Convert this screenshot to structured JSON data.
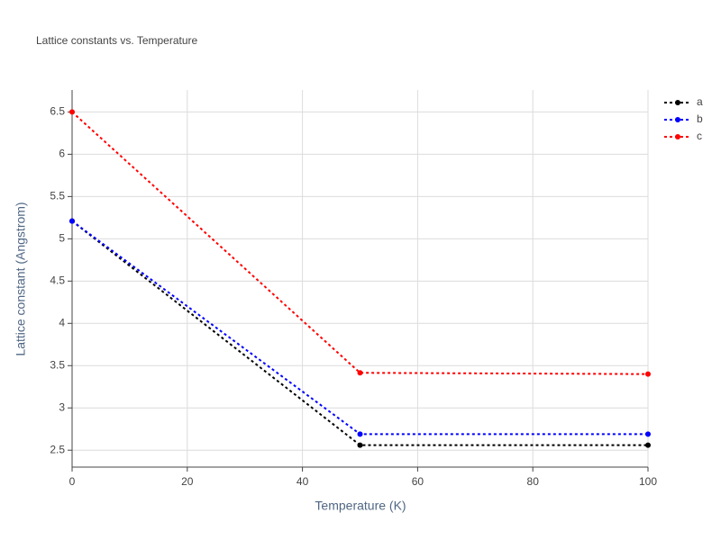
{
  "chart_data": {
    "type": "line",
    "title": "Lattice constants vs. Temperature",
    "x_label": "Temperature (K)",
    "y_label": "Lattice constant (Angstrom)",
    "x": [
      0,
      50,
      100
    ],
    "series": [
      {
        "name": "a",
        "color": "#000000",
        "values": [
          5.21,
          2.56,
          2.56
        ]
      },
      {
        "name": "b",
        "color": "#0000ff",
        "values": [
          5.21,
          2.69,
          2.69
        ]
      },
      {
        "name": "c",
        "color": "#ff0000",
        "values": [
          6.5,
          3.415,
          3.4
        ]
      }
    ],
    "xlim": [
      0,
      100
    ],
    "xticks": [
      0,
      20,
      40,
      60,
      80,
      100
    ],
    "ylim": [
      2.3,
      6.76
    ],
    "yticks": [
      2.5,
      3,
      3.5,
      4,
      4.5,
      5,
      5.5,
      6,
      6.5
    ],
    "grid": true,
    "legend": "top-right"
  }
}
